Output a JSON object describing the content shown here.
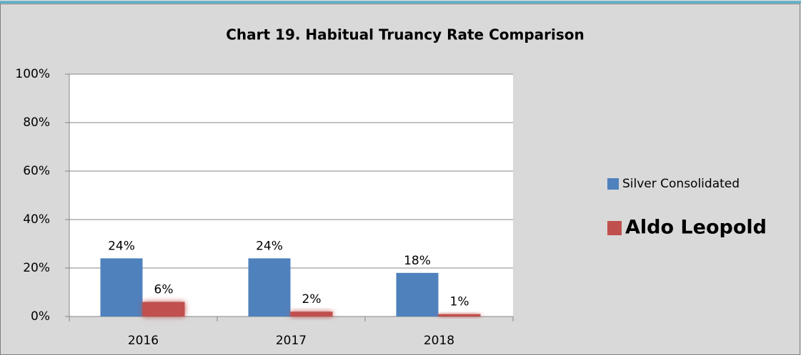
{
  "chart_data": {
    "type": "bar",
    "title": "Chart 19. Habitual Truancy Rate Comparison",
    "categories": [
      "2016",
      "2017",
      "2018"
    ],
    "series": [
      {
        "name": "Silver Consolidated",
        "color": "#4f81bd",
        "values": [
          24,
          24,
          18
        ],
        "value_labels": [
          "24%",
          "24%",
          "18%"
        ]
      },
      {
        "name": "Aldo Leopold",
        "color": "#c0504d",
        "values": [
          6,
          2,
          1
        ],
        "value_labels": [
          "6%",
          "2%",
          "1%"
        ]
      }
    ],
    "ylim": [
      0,
      100
    ],
    "yticks": [
      {
        "value": 0,
        "label": "0%"
      },
      {
        "value": 20,
        "label": "20%"
      },
      {
        "value": 40,
        "label": "40%"
      },
      {
        "value": 60,
        "label": "60%"
      },
      {
        "value": 80,
        "label": "80%"
      },
      {
        "value": 100,
        "label": "100%"
      }
    ],
    "grid": true,
    "legend": "right"
  }
}
